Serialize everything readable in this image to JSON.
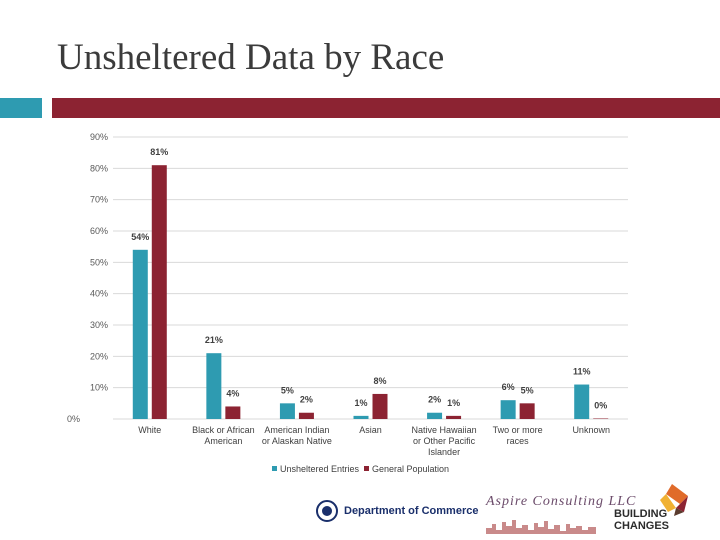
{
  "title": "Unsheltered Data by Race",
  "colors": {
    "unsheltered": "#2e9bb1",
    "general": "#8c2332",
    "accent_teal": "#2e9bb1",
    "accent_red": "#8c2332"
  },
  "chart_data": {
    "type": "bar",
    "categories": [
      [
        "White"
      ],
      [
        "Black or African",
        "American"
      ],
      [
        "American Indian",
        "or Alaskan Native"
      ],
      [
        "Asian"
      ],
      [
        "Native Hawaiian",
        "or Other Pacific",
        "Islander"
      ],
      [
        "Two or more",
        "races"
      ],
      [
        "Unknown"
      ]
    ],
    "series": [
      {
        "name": "Unsheltered Entries",
        "values": [
          54,
          21,
          5,
          1,
          2,
          6,
          11
        ],
        "labels": [
          "54%",
          "21%",
          "5%",
          "1%",
          "2%",
          "6%",
          "11%"
        ]
      },
      {
        "name": "General Population",
        "values": [
          81,
          4,
          2,
          8,
          1,
          5,
          0
        ],
        "labels": [
          "81%",
          "4%",
          "2%",
          "8%",
          "1%",
          "5%",
          "0%"
        ]
      }
    ],
    "y_ticks": [
      "0%",
      "10%",
      "20%",
      "30%",
      "40%",
      "50%",
      "60%",
      "70%",
      "80%",
      "90%"
    ],
    "ylim": [
      0,
      90
    ],
    "legend_position": "bottom"
  },
  "logos": {
    "commerce": "Department of Commerce",
    "aspire": "Aspire Consulting LLC",
    "building_changes": [
      "BUILDING",
      "CHANGES"
    ]
  }
}
